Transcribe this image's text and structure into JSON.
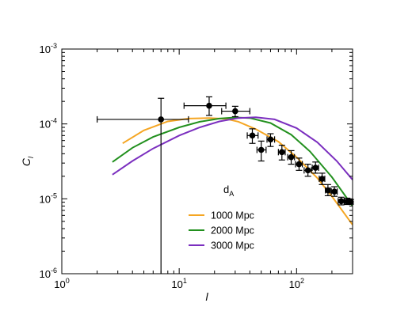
{
  "chart_data": {
    "type": "line",
    "xlabel": "l",
    "ylabel": "C",
    "ylabel_sub": "l",
    "xscale": "log",
    "yscale": "log",
    "xlim": [
      1,
      300
    ],
    "ylim": [
      1e-06,
      0.001
    ],
    "x_ticks": [
      {
        "value": 1,
        "base": "10",
        "exp": "0"
      },
      {
        "value": 10,
        "base": "10",
        "exp": "1"
      },
      {
        "value": 100,
        "base": "10",
        "exp": "2"
      }
    ],
    "y_ticks": [
      {
        "value": 1e-06,
        "base": "10",
        "exp": "-6"
      },
      {
        "value": 1e-05,
        "base": "10",
        "exp": "-5"
      },
      {
        "value": 0.0001,
        "base": "10",
        "exp": "-4"
      },
      {
        "value": 0.001,
        "base": "10",
        "exp": "-3"
      }
    ],
    "legend": {
      "title": "d",
      "title_sub": "A",
      "placement": "lower-center"
    },
    "series": [
      {
        "name": "1000 Mpc",
        "color": "#f5a623",
        "points": [
          [
            3.3,
            5.5e-05
          ],
          [
            5,
            8.2e-05
          ],
          [
            8,
            0.000108
          ],
          [
            12,
            0.000118
          ],
          [
            18,
            0.00012
          ],
          [
            25,
            0.000117
          ],
          [
            32,
            0.000107
          ],
          [
            45,
            8.5e-05
          ],
          [
            70,
            5.8e-05
          ],
          [
            100,
            3.6e-05
          ],
          [
            150,
            1.9e-05
          ],
          [
            200,
            1.08e-05
          ],
          [
            300,
            4.5e-06
          ]
        ]
      },
      {
        "name": "2000 Mpc",
        "color": "#22901e",
        "points": [
          [
            2.7,
            3.1e-05
          ],
          [
            4,
            4.8e-05
          ],
          [
            6,
            6.7e-05
          ],
          [
            10,
            9e-05
          ],
          [
            15,
            0.000107
          ],
          [
            22,
            0.000118
          ],
          [
            30,
            0.000122
          ],
          [
            40,
            0.00012
          ],
          [
            60,
            0.000103
          ],
          [
            90,
            7.2e-05
          ],
          [
            130,
            4.3e-05
          ],
          [
            200,
            1.95e-05
          ],
          [
            300,
            8e-06
          ]
        ]
      },
      {
        "name": "3000 Mpc",
        "color": "#7b2fbf",
        "points": [
          [
            2.7,
            2.1e-05
          ],
          [
            4,
            3.2e-05
          ],
          [
            6,
            4.7e-05
          ],
          [
            10,
            7e-05
          ],
          [
            15,
            9e-05
          ],
          [
            22,
            0.000108
          ],
          [
            32,
            0.00012
          ],
          [
            45,
            0.000123
          ],
          [
            65,
            0.000115
          ],
          [
            100,
            8.8e-05
          ],
          [
            150,
            5.7e-05
          ],
          [
            220,
            3.2e-05
          ],
          [
            300,
            1.8e-05
          ]
        ]
      }
    ],
    "data_points": [
      {
        "x": 7,
        "y": 0.000115,
        "xlo": 2,
        "xhi": 12,
        "ylo": 1e-06,
        "yhi": 0.00022
      },
      {
        "x": 18,
        "y": 0.000175,
        "xlo": 11,
        "xhi": 25,
        "ylo": 0.00013,
        "yhi": 0.00023
      },
      {
        "x": 30,
        "y": 0.000148,
        "xlo": 23,
        "xhi": 40,
        "ylo": 0.000125,
        "yhi": 0.000172
      },
      {
        "x": 42,
        "y": 7e-05,
        "xlo": 38,
        "xhi": 47,
        "ylo": 5.5e-05,
        "yhi": 8.6e-05
      },
      {
        "x": 50,
        "y": 4.5e-05,
        "xlo": 46,
        "xhi": 55,
        "ylo": 3.2e-05,
        "yhi": 5.9e-05
      },
      {
        "x": 60,
        "y": 6.2e-05,
        "xlo": 56,
        "xhi": 65,
        "ylo": 5e-05,
        "yhi": 7.4e-05
      },
      {
        "x": 75,
        "y": 4.2e-05,
        "xlo": 70,
        "xhi": 80,
        "ylo": 3.3e-05,
        "yhi": 5.2e-05
      },
      {
        "x": 90,
        "y": 3.6e-05,
        "xlo": 84,
        "xhi": 96,
        "ylo": 2.9e-05,
        "yhi": 4.4e-05
      },
      {
        "x": 105,
        "y": 2.9e-05,
        "xlo": 98,
        "xhi": 112,
        "ylo": 2.4e-05,
        "yhi": 3.5e-05
      },
      {
        "x": 125,
        "y": 2.4e-05,
        "xlo": 116,
        "xhi": 134,
        "ylo": 2e-05,
        "yhi": 2.9e-05
      },
      {
        "x": 145,
        "y": 2.6e-05,
        "xlo": 136,
        "xhi": 154,
        "ylo": 2.2e-05,
        "yhi": 3.1e-05
      },
      {
        "x": 165,
        "y": 1.85e-05,
        "xlo": 156,
        "xhi": 174,
        "ylo": 1.55e-05,
        "yhi": 2.2e-05
      },
      {
        "x": 185,
        "y": 1.3e-05,
        "xlo": 176,
        "xhi": 194,
        "ylo": 1.1e-05,
        "yhi": 1.55e-05
      },
      {
        "x": 210,
        "y": 1.25e-05,
        "xlo": 198,
        "xhi": 222,
        "ylo": 1.08e-05,
        "yhi": 1.45e-05
      },
      {
        "x": 240,
        "y": 9.3e-06,
        "xlo": 226,
        "xhi": 254,
        "ylo": 8.3e-06,
        "yhi": 1.05e-05
      },
      {
        "x": 270,
        "y": 9.2e-06,
        "xlo": 256,
        "xhi": 285,
        "ylo": 8.4e-06,
        "yhi": 1.02e-05
      },
      {
        "x": 290,
        "y": 9.1e-06,
        "xlo": 280,
        "xhi": 300,
        "ylo": 8.5e-06,
        "yhi": 9.8e-06
      }
    ]
  }
}
